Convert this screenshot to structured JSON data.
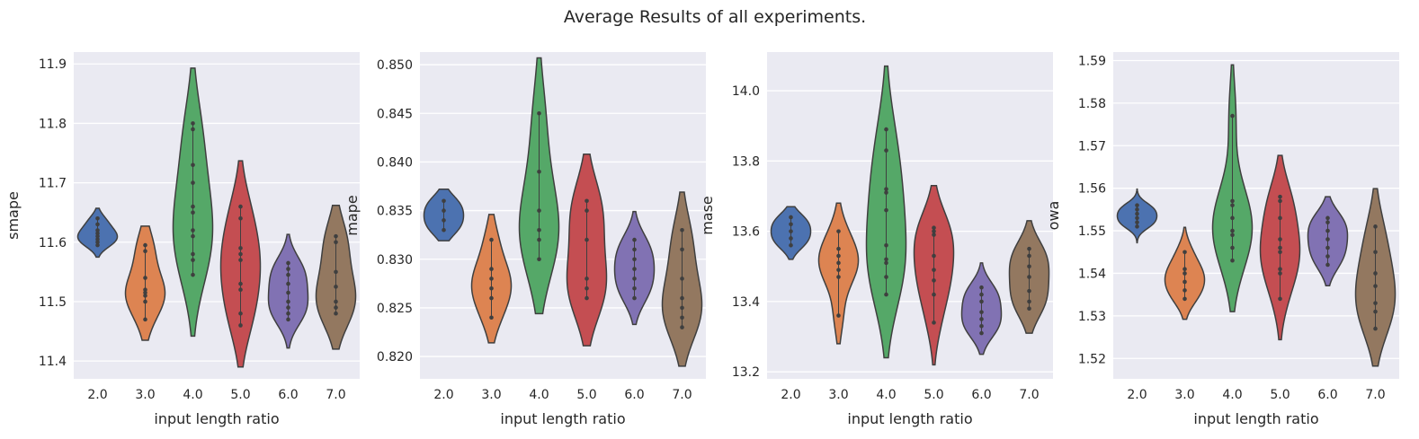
{
  "title": "Average Results of all experiments.",
  "colors": {
    "plot_bg": "#EAEAF2",
    "grid": "#FFFFFF",
    "text": "#262626",
    "inner": "#3F3F3F",
    "categories": [
      "#4C72B0",
      "#DD8452",
      "#55A868",
      "#C44E52",
      "#8172B3",
      "#937860"
    ]
  },
  "chart_data": [
    {
      "type": "violin",
      "xlabel": "input length ratio",
      "ylabel": "smape",
      "categories": [
        "2.0",
        "3.0",
        "4.0",
        "5.0",
        "6.0",
        "7.0"
      ],
      "ylim": [
        11.37,
        11.92
      ],
      "yticks": [
        "11.4",
        "11.5",
        "11.6",
        "11.7",
        "11.8",
        "11.9"
      ],
      "series": [
        {
          "name": "2.0",
          "min": 11.575,
          "max": 11.657,
          "points": [
            11.595,
            11.6,
            11.605,
            11.61,
            11.615,
            11.62,
            11.63,
            11.64
          ]
        },
        {
          "name": "3.0",
          "min": 11.435,
          "max": 11.627,
          "points": [
            11.47,
            11.5,
            11.51,
            11.515,
            11.52,
            11.54,
            11.585,
            11.595
          ]
        },
        {
          "name": "4.0",
          "min": 11.442,
          "max": 11.893,
          "points": [
            11.545,
            11.57,
            11.58,
            11.61,
            11.62,
            11.65,
            11.66,
            11.7,
            11.73,
            11.79,
            11.8
          ]
        },
        {
          "name": "5.0",
          "min": 11.39,
          "max": 11.737,
          "points": [
            11.46,
            11.48,
            11.52,
            11.53,
            11.57,
            11.58,
            11.59,
            11.64,
            11.66
          ]
        },
        {
          "name": "6.0",
          "min": 11.422,
          "max": 11.613,
          "points": [
            11.47,
            11.48,
            11.49,
            11.5,
            11.515,
            11.53,
            11.545,
            11.555,
            11.565
          ]
        },
        {
          "name": "7.0",
          "min": 11.42,
          "max": 11.662,
          "points": [
            11.48,
            11.49,
            11.5,
            11.525,
            11.55,
            11.6,
            11.61
          ]
        }
      ]
    },
    {
      "type": "violin",
      "xlabel": "input length ratio",
      "ylabel": "mape",
      "categories": [
        "2.0",
        "3.0",
        "4.0",
        "5.0",
        "6.0",
        "7.0"
      ],
      "ylim": [
        0.8177,
        0.8513
      ],
      "yticks": [
        "0.820",
        "0.825",
        "0.830",
        "0.835",
        "0.840",
        "0.845",
        "0.850"
      ],
      "series": [
        {
          "name": "2.0",
          "min": 0.8319,
          "max": 0.8372,
          "points": [
            0.833,
            0.834,
            0.835,
            0.836
          ]
        },
        {
          "name": "3.0",
          "min": 0.8214,
          "max": 0.8346,
          "points": [
            0.824,
            0.826,
            0.827,
            0.828,
            0.829,
            0.832
          ]
        },
        {
          "name": "4.0",
          "min": 0.8244,
          "max": 0.8507,
          "points": [
            0.83,
            0.832,
            0.833,
            0.835,
            0.839,
            0.845
          ]
        },
        {
          "name": "5.0",
          "min": 0.8211,
          "max": 0.8408,
          "points": [
            0.826,
            0.827,
            0.828,
            0.832,
            0.835,
            0.836
          ]
        },
        {
          "name": "6.0",
          "min": 0.8233,
          "max": 0.8349,
          "points": [
            0.826,
            0.827,
            0.828,
            0.829,
            0.83,
            0.831,
            0.832
          ]
        },
        {
          "name": "7.0",
          "min": 0.819,
          "max": 0.8369,
          "points": [
            0.823,
            0.824,
            0.825,
            0.826,
            0.828,
            0.831,
            0.833
          ]
        }
      ]
    },
    {
      "type": "violin",
      "xlabel": "input length ratio",
      "ylabel": "mase",
      "categories": [
        "2.0",
        "3.0",
        "4.0",
        "5.0",
        "6.0",
        "7.0"
      ],
      "ylim": [
        13.18,
        14.11
      ],
      "yticks": [
        "13.2",
        "13.4",
        "13.6",
        "13.8",
        "14.0"
      ],
      "series": [
        {
          "name": "2.0",
          "min": 13.52,
          "max": 13.67,
          "points": [
            13.56,
            13.58,
            13.6,
            13.62,
            13.64
          ]
        },
        {
          "name": "3.0",
          "min": 13.28,
          "max": 13.68,
          "points": [
            13.36,
            13.47,
            13.49,
            13.51,
            13.53,
            13.55,
            13.6
          ]
        },
        {
          "name": "4.0",
          "min": 13.24,
          "max": 14.07,
          "points": [
            13.42,
            13.47,
            13.51,
            13.52,
            13.56,
            13.66,
            13.71,
            13.72,
            13.83,
            13.89
          ]
        },
        {
          "name": "5.0",
          "min": 13.22,
          "max": 13.73,
          "points": [
            13.34,
            13.42,
            13.46,
            13.49,
            13.53,
            13.59,
            13.6,
            13.61
          ]
        },
        {
          "name": "6.0",
          "min": 13.25,
          "max": 13.51,
          "points": [
            13.31,
            13.33,
            13.35,
            13.37,
            13.4,
            13.42,
            13.44
          ]
        },
        {
          "name": "7.0",
          "min": 13.31,
          "max": 13.63,
          "points": [
            13.38,
            13.4,
            13.43,
            13.47,
            13.5,
            13.53,
            13.55
          ]
        }
      ]
    },
    {
      "type": "violin",
      "xlabel": "input length ratio",
      "ylabel": "owa",
      "categories": [
        "2.0",
        "3.0",
        "4.0",
        "5.0",
        "6.0",
        "7.0"
      ],
      "ylim": [
        1.5152,
        1.592
      ],
      "yticks": [
        "1.52",
        "1.53",
        "1.54",
        "1.55",
        "1.56",
        "1.57",
        "1.58",
        "1.59"
      ],
      "series": [
        {
          "name": "2.0",
          "min": 1.5472,
          "max": 1.5598,
          "points": [
            1.551,
            1.552,
            1.553,
            1.554,
            1.555,
            1.556
          ]
        },
        {
          "name": "3.0",
          "min": 1.5292,
          "max": 1.5508,
          "points": [
            1.534,
            1.536,
            1.538,
            1.54,
            1.541,
            1.545
          ]
        },
        {
          "name": "4.0",
          "min": 1.531,
          "max": 1.589,
          "points": [
            1.543,
            1.546,
            1.549,
            1.55,
            1.553,
            1.556,
            1.557,
            1.577
          ]
        },
        {
          "name": "5.0",
          "min": 1.5244,
          "max": 1.5677,
          "points": [
            1.534,
            1.54,
            1.541,
            1.545,
            1.546,
            1.548,
            1.553,
            1.557,
            1.558
          ]
        },
        {
          "name": "6.0",
          "min": 1.5371,
          "max": 1.558,
          "points": [
            1.542,
            1.544,
            1.546,
            1.548,
            1.55,
            1.552,
            1.553
          ]
        },
        {
          "name": "7.0",
          "min": 1.5182,
          "max": 1.5599,
          "points": [
            1.527,
            1.531,
            1.533,
            1.537,
            1.54,
            1.545,
            1.551
          ]
        }
      ]
    }
  ]
}
